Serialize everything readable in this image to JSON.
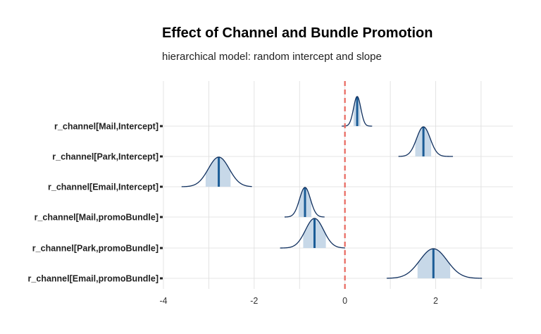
{
  "chart_data": {
    "type": "density-ridge",
    "title": "Effect of Channel and Bundle Promotion",
    "subtitle": "hierarchical model: random intercept and slope",
    "xlabel": "",
    "ylabel": "",
    "xlim": [
      -4.0,
      3.7
    ],
    "xticks": [
      -4,
      -2,
      0,
      2
    ],
    "xtick_labels": [
      "-4",
      "-2",
      "0",
      "2"
    ],
    "reference_line": {
      "x": 0,
      "style": "dashed",
      "color": "#e8685f"
    },
    "grid": true,
    "colors": {
      "outline": "#0f2f5e",
      "interval_fill": "#c7d8e8",
      "median_line": "#1b5c96",
      "grid": "#dddddd"
    },
    "series": [
      {
        "name": "r_channel[Mail,Intercept]",
        "median": 0.27,
        "sd": 0.08,
        "interval": [
          0.19,
          0.34
        ],
        "range": [
          -0.07,
          0.6
        ]
      },
      {
        "name": "r_channel[Park,Intercept]",
        "median": 1.73,
        "sd": 0.15,
        "interval": [
          1.55,
          1.9
        ],
        "range": [
          1.18,
          2.38
        ]
      },
      {
        "name": "r_channel[Email,Intercept]",
        "median": -2.78,
        "sd": 0.23,
        "interval": [
          -3.07,
          -2.52
        ],
        "range": [
          -3.6,
          -2.05
        ]
      },
      {
        "name": "r_channel[Mail,promoBundle]",
        "median": -0.88,
        "sd": 0.12,
        "interval": [
          -1.02,
          -0.74
        ],
        "range": [
          -1.33,
          -0.45
        ]
      },
      {
        "name": "r_channel[Park,promoBundle]",
        "median": -0.67,
        "sd": 0.2,
        "interval": [
          -0.92,
          -0.42
        ],
        "range": [
          -1.43,
          0.0
        ]
      },
      {
        "name": "r_channel[Email,promoBundle]",
        "median": 1.95,
        "sd": 0.3,
        "interval": [
          1.6,
          2.32
        ],
        "range": [
          0.92,
          3.02
        ]
      }
    ]
  }
}
